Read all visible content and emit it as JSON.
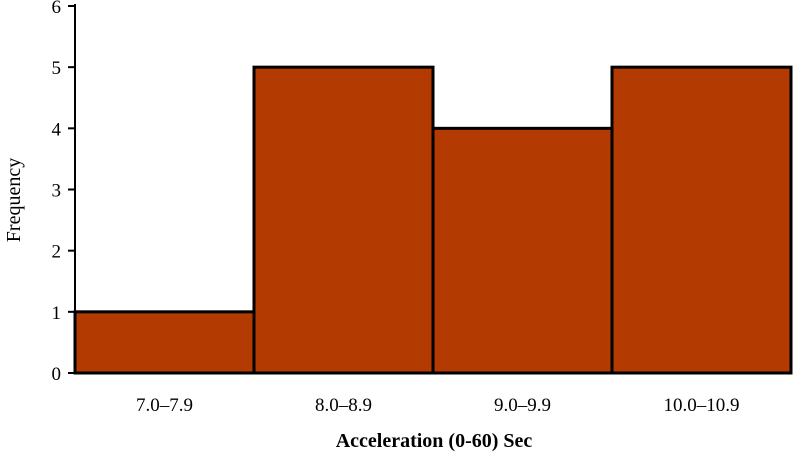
{
  "chart_data": {
    "type": "bar",
    "title": "",
    "xlabel": "Acceleration (0-60) Sec",
    "ylabel": "Frequency",
    "categories": [
      "7.0–7.9",
      "8.0–8.9",
      "9.0–9.9",
      "10.0–10.9"
    ],
    "values": [
      1,
      5,
      4,
      5
    ],
    "ylim": [
      0,
      6
    ],
    "yticks": [
      "0",
      "1",
      "2",
      "3",
      "4",
      "5",
      "6"
    ],
    "grid": false,
    "bar_color": "#b33a00",
    "bar_edge_color": "#000000"
  }
}
